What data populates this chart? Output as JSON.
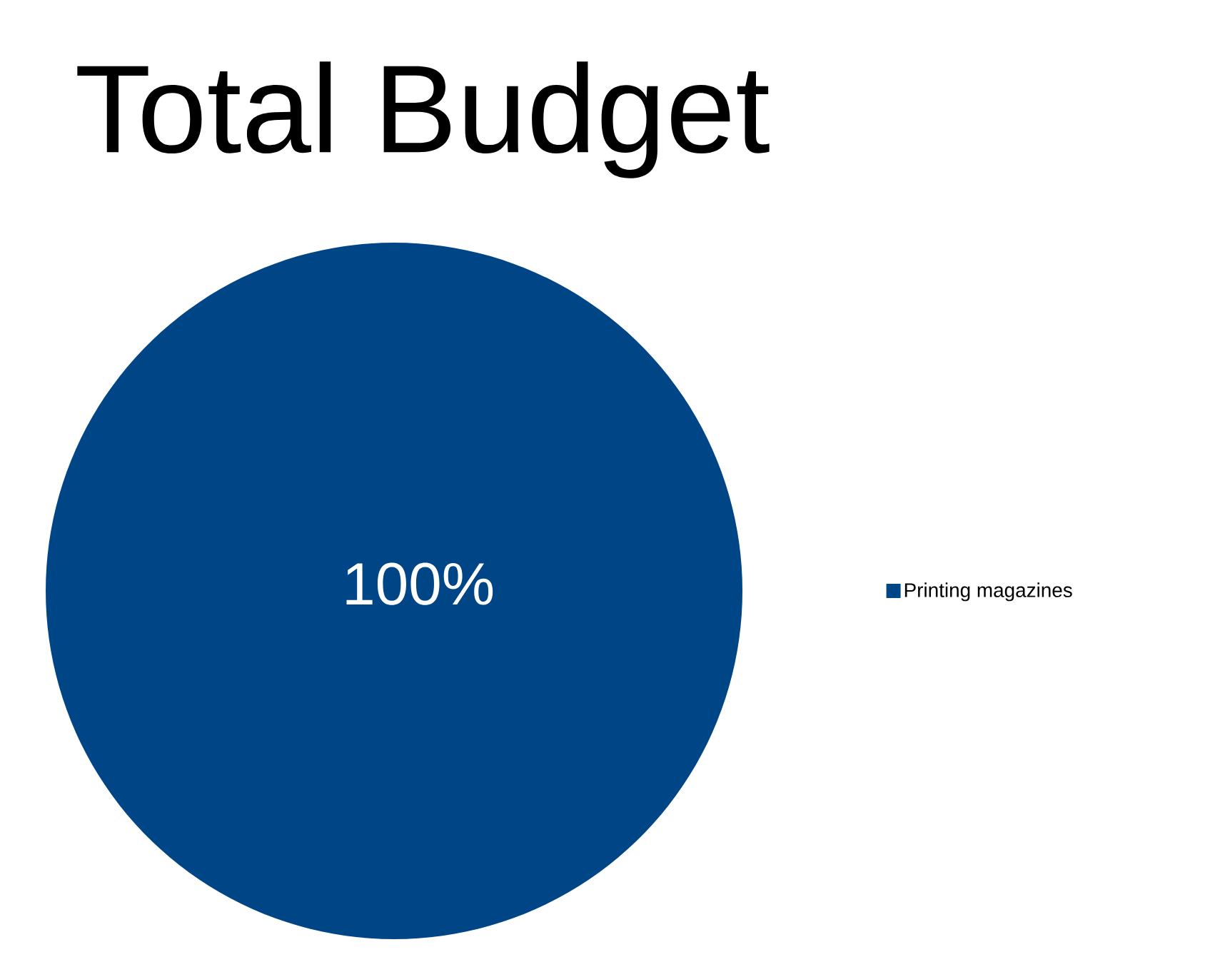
{
  "chart_data": {
    "type": "pie",
    "title": "Total Budget",
    "categories": [
      "Printing magazines"
    ],
    "values": [
      100
    ],
    "colors": [
      "#004586"
    ],
    "value_labels": [
      "100%"
    ],
    "legend": "right"
  }
}
